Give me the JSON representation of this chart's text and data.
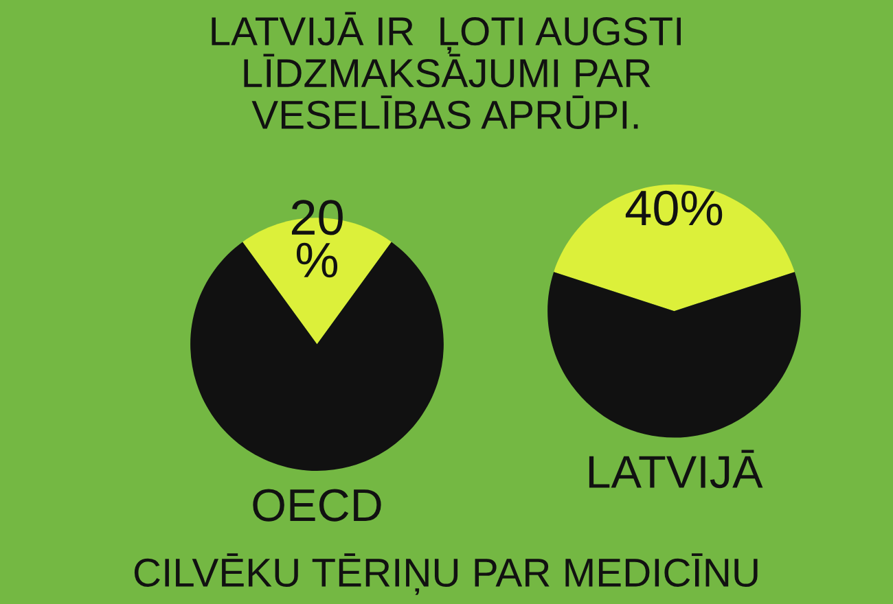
{
  "chart_data": [
    {
      "type": "pie",
      "title": "LATVIJĀ IR  ĻOTI AUGSTI\nLĪDZMAKSĀJUMI PAR\nVESELĪBAS APRŪPI.",
      "xlabel": "OECD",
      "categories": [
        null,
        null
      ],
      "values": [
        20,
        80
      ],
      "colors": [
        "#dcf03a",
        "#111111"
      ],
      "value_labels": [
        "20\n%",
        null
      ]
    },
    {
      "type": "pie",
      "xlabel": "LATVIJĀ",
      "categories": [
        null,
        null
      ],
      "values": [
        40,
        60
      ],
      "colors": [
        "#dcf03a",
        "#111111"
      ],
      "value_labels": [
        "40%",
        null
      ],
      "annotations": [
        "CILVĒKU TĒRIŅU PAR MEDICĪNU"
      ]
    }
  ]
}
